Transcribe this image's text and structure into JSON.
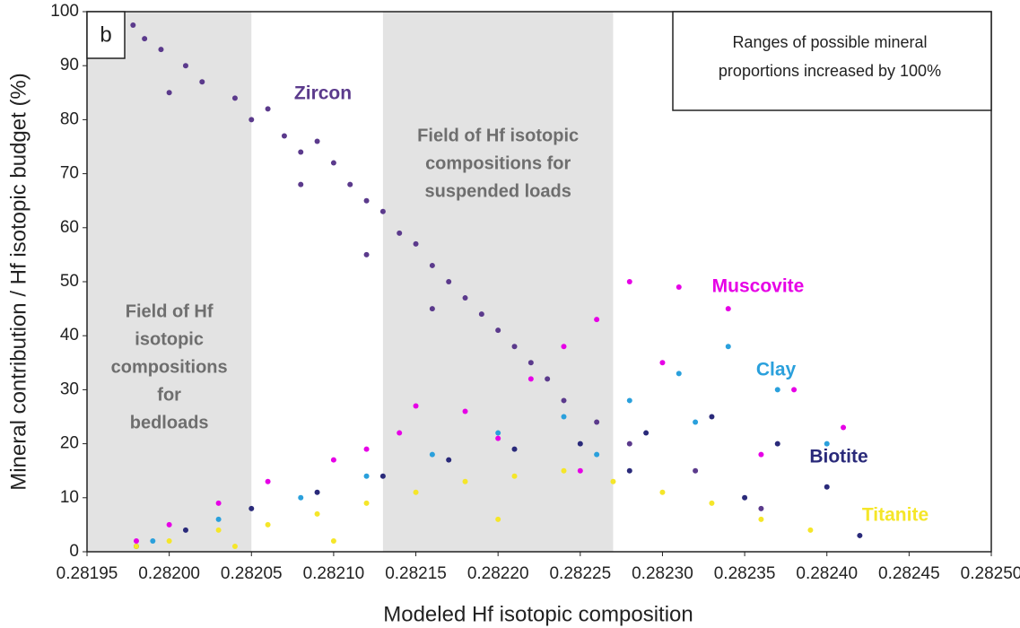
{
  "chart_data": {
    "type": "scatter",
    "panel_label": "b",
    "note": [
      "Ranges of possible mineral",
      "proportions increased by 100%"
    ],
    "x_label": "Modeled Hf isotopic composition",
    "y_label": "Mineral contribution /  Hf isotopic budget (%)",
    "xlim": [
      0.28195,
      0.2825
    ],
    "ylim": [
      0,
      100
    ],
    "xticks": [
      0.28195,
      {
        "value": 0.282,
        "label": "0.28200"
      },
      0.28205,
      {
        "value": 0.2821,
        "label": "0.28210"
      },
      0.28215,
      {
        "value": 0.2822,
        "label": "0.28220"
      },
      0.28225,
      {
        "value": 0.2823,
        "label": "0.28230"
      },
      0.28235,
      {
        "value": 0.2824,
        "label": "0.28240"
      },
      0.28245,
      {
        "value": 0.2825,
        "label": "0.28250"
      }
    ],
    "yticks": [
      0,
      10,
      20,
      30,
      40,
      50,
      60,
      70,
      80,
      90,
      100
    ],
    "grid": false,
    "regions": [
      {
        "xrange": [
          0.28195,
          0.28205
        ],
        "color": "#e3e3e3",
        "label": [
          "Field of Hf",
          "isotopic",
          "compositions",
          "for",
          "bedloads"
        ]
      },
      {
        "xrange": [
          0.28213,
          0.28227
        ],
        "color": "#e3e3e3",
        "label": [
          "Field of Hf isotopic",
          "compositions for",
          "suspended loads"
        ]
      }
    ],
    "series": [
      {
        "name": "Zircon",
        "color": "#5b3a8c",
        "x": [
          0.281978,
          0.281985,
          0.281995,
          0.28201,
          0.28202,
          0.28204,
          0.28205,
          0.28206,
          0.28207,
          0.28208,
          0.28209,
          0.2821,
          0.28211,
          0.28212,
          0.28213,
          0.28214,
          0.28215,
          0.28216,
          0.28217,
          0.28218,
          0.28219,
          0.2822,
          0.28221,
          0.28222,
          0.28223,
          0.28224,
          0.28226,
          0.28228,
          0.28232,
          0.28236,
          0.28212,
          0.28208,
          0.28216,
          0.282
        ],
        "values": [
          97.5,
          95,
          93,
          90,
          87,
          84,
          80,
          82,
          77,
          74,
          76,
          72,
          68,
          65,
          63,
          59,
          57,
          53,
          50,
          47,
          44,
          41,
          38,
          35,
          32,
          28,
          24,
          20,
          15,
          8,
          55,
          68,
          45,
          85
        ]
      },
      {
        "name": "Muscovite",
        "color": "#e600e6",
        "x": [
          0.28198,
          0.282,
          0.28203,
          0.28206,
          0.2821,
          0.28214,
          0.28218,
          0.28222,
          0.28224,
          0.28226,
          0.28228,
          0.28231,
          0.28234,
          0.28238,
          0.28241,
          0.2822,
          0.28215,
          0.2823,
          0.28236,
          0.28225,
          0.28212
        ],
        "values": [
          2,
          5,
          9,
          13,
          17,
          22,
          26,
          32,
          38,
          43,
          50,
          49,
          45,
          30,
          23,
          21,
          27,
          35,
          18,
          15,
          19
        ]
      },
      {
        "name": "Clay",
        "color": "#2aa0dc",
        "x": [
          0.28199,
          0.28203,
          0.28208,
          0.28212,
          0.28216,
          0.2822,
          0.28224,
          0.28228,
          0.28231,
          0.28234,
          0.28237,
          0.2824,
          0.28226,
          0.28232
        ],
        "values": [
          2,
          6,
          10,
          14,
          18,
          22,
          25,
          28,
          33,
          38,
          30,
          20,
          18,
          24
        ]
      },
      {
        "name": "Biotite",
        "color": "#2a2a7a",
        "x": [
          0.28198,
          0.28201,
          0.28205,
          0.28209,
          0.28213,
          0.28217,
          0.28221,
          0.28225,
          0.28229,
          0.28233,
          0.28237,
          0.2824,
          0.28228,
          0.28235,
          0.28242
        ],
        "values": [
          1,
          4,
          8,
          11,
          14,
          17,
          19,
          20,
          22,
          25,
          20,
          12,
          15,
          10,
          3
        ]
      },
      {
        "name": "Titanite",
        "color": "#f5e629",
        "x": [
          0.28198,
          0.282,
          0.28203,
          0.28206,
          0.28209,
          0.28212,
          0.28215,
          0.28218,
          0.28221,
          0.28224,
          0.28227,
          0.2823,
          0.28233,
          0.28236,
          0.28239,
          0.2821,
          0.2822,
          0.28204
        ],
        "values": [
          1,
          2,
          4,
          5,
          7,
          9,
          11,
          13,
          14,
          15,
          13,
          11,
          9,
          6,
          4,
          2,
          6,
          1
        ]
      }
    ]
  }
}
